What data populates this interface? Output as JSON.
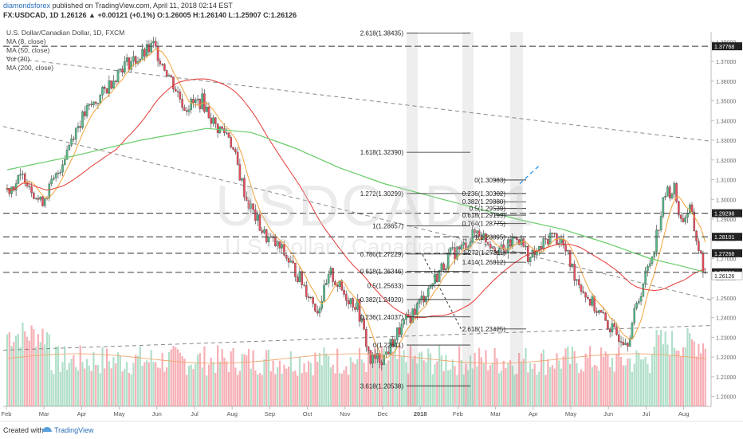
{
  "header": {
    "author": "diamondsforex",
    "published_text": "published on TradingView.com, April 11, 2018 02:14 EST",
    "symbol_line": "FX:USDCAD, 1D 1.26126 ▲ +0.00121 (+0.1%) O:1.26005 H:1.26140 L:1.25907 C:1.26126"
  },
  "legend": {
    "title": "U.S. Dollar/Canadian Dollar, 1D, FXCM",
    "items": [
      "MA (8, close)",
      "MA (50, close)",
      "Vol (20)",
      "MA (200, close)"
    ]
  },
  "watermark": {
    "symbol": "USDCAD, 1",
    "name": "U.S. Dollar / Canadian Dollar"
  },
  "footer": {
    "created_with": "Created with",
    "brand": "TradingView"
  },
  "colors": {
    "up": "#53b987",
    "down": "#eb4d5c",
    "ma8": "#f2a33a",
    "ma50": "#e53935",
    "ma200": "#66cc66",
    "level_line": "#555555",
    "accent": "#2196f3"
  },
  "chart_data": {
    "type": "candlestick",
    "title": "U.S. Dollar/Canadian Dollar, 1D, FXCM",
    "ylim": [
      1.195,
      1.385
    ],
    "y_ticks": [
      "1.38000",
      "1.37000",
      "1.36000",
      "1.35000",
      "1.34000",
      "1.33000",
      "1.32000",
      "1.31000",
      "1.30000",
      "1.29000",
      "1.28000",
      "1.27000",
      "1.26000",
      "1.25000",
      "1.24000",
      "1.23000",
      "1.22000",
      "1.21000",
      "1.20000"
    ],
    "x_ticks": [
      "Feb",
      "Mar",
      "Apr",
      "May",
      "Jun",
      "Jul",
      "Aug",
      "Sep",
      "Oct",
      "Nov",
      "Dec",
      "2018",
      "Feb",
      "Mar",
      "Apr",
      "May",
      "Jun",
      "Jul",
      "Aug"
    ],
    "price_anchors": [
      [
        0,
        1.305
      ],
      [
        8,
        1.312
      ],
      [
        15,
        1.298
      ],
      [
        22,
        1.311
      ],
      [
        30,
        1.334
      ],
      [
        36,
        1.345
      ],
      [
        42,
        1.352
      ],
      [
        52,
        1.368
      ],
      [
        60,
        1.372
      ],
      [
        66,
        1.378
      ],
      [
        73,
        1.363
      ],
      [
        80,
        1.347
      ],
      [
        88,
        1.35
      ],
      [
        94,
        1.337
      ],
      [
        100,
        1.333
      ],
      [
        108,
        1.3
      ],
      [
        116,
        1.282
      ],
      [
        124,
        1.274
      ],
      [
        132,
        1.26
      ],
      [
        140,
        1.244
      ],
      [
        146,
        1.262
      ],
      [
        152,
        1.252
      ],
      [
        158,
        1.246
      ],
      [
        164,
        1.218
      ],
      [
        170,
        1.22
      ],
      [
        176,
        1.232
      ],
      [
        184,
        1.244
      ],
      [
        192,
        1.258
      ],
      [
        200,
        1.272
      ],
      [
        206,
        1.276
      ],
      [
        212,
        1.284
      ],
      [
        218,
        1.278
      ],
      [
        224,
        1.273
      ],
      [
        230,
        1.282
      ],
      [
        236,
        1.27
      ],
      [
        240,
        1.274
      ],
      [
        245,
        1.282
      ],
      [
        250,
        1.279
      ],
      [
        256,
        1.262
      ],
      [
        262,
        1.25
      ],
      [
        268,
        1.241
      ],
      [
        274,
        1.232
      ],
      [
        280,
        1.229
      ],
      [
        286,
        1.254
      ],
      [
        291,
        1.272
      ],
      [
        297,
        1.303
      ],
      [
        301,
        1.305
      ],
      [
        304,
        1.289
      ],
      [
        308,
        1.295
      ],
      [
        312,
        1.275
      ],
      [
        315,
        1.2612
      ]
    ],
    "ma200_anchors": [
      [
        0,
        1.315
      ],
      [
        30,
        1.322
      ],
      [
        60,
        1.33
      ],
      [
        90,
        1.336
      ],
      [
        110,
        1.334
      ],
      [
        130,
        1.326
      ],
      [
        150,
        1.316
      ],
      [
        170,
        1.308
      ],
      [
        190,
        1.302
      ],
      [
        210,
        1.296
      ],
      [
        230,
        1.29
      ],
      [
        250,
        1.285
      ],
      [
        270,
        1.278
      ],
      [
        290,
        1.27
      ],
      [
        305,
        1.266
      ],
      [
        315,
        1.263
      ]
    ],
    "last_price": "1.26126",
    "levels": [
      {
        "price": 1.37768,
        "label": "1.37768"
      },
      {
        "price": 1.29298,
        "label": "1.29298"
      },
      {
        "price": 1.28101,
        "label": "1.28101"
      },
      {
        "price": 1.27268,
        "label": "1.27268"
      },
      {
        "price": 1.263,
        "label": "1.26300"
      }
    ],
    "fibonacci": [
      {
        "price": 1.38435,
        "label": "2.618(1.38435)"
      },
      {
        "price": 1.3239,
        "label": "1.618(1.32390)"
      },
      {
        "price": 1.30299,
        "label": "1.272(1.30299)"
      },
      {
        "price": 1.28657,
        "label": "1(1.28657)"
      },
      {
        "price": 1.27229,
        "label": "0.786(1.27229)"
      },
      {
        "price": 1.26346,
        "label": "0.618(1.26346)"
      },
      {
        "price": 1.25633,
        "label": "0.5(1.25633)"
      },
      {
        "price": 1.2492,
        "label": "0.382(1.24920)"
      },
      {
        "price": 1.24037,
        "label": "0.236(1.24037)"
      },
      {
        "price": 1.22611,
        "label": "0(1.22611)"
      },
      {
        "price": 1.20538,
        "label": "3.618(1.20538)"
      }
    ],
    "fibonacci_recent": [
      {
        "price": 1.30983,
        "label": "0(1.30983)"
      },
      {
        "price": 1.30302,
        "label": "0.236(1.30302)"
      },
      {
        "price": 1.2988,
        "label": "0.382(1.29880)"
      },
      {
        "price": 1.29539,
        "label": "0.5(1.29539)"
      },
      {
        "price": 1.29199,
        "label": "0.618(1.29199)"
      },
      {
        "price": 1.28775,
        "label": "0.764(1.28775)"
      },
      {
        "price": 1.28095,
        "label": "1(1.28095)"
      },
      {
        "price": 1.27311,
        "label": "1.272(1.27311)"
      },
      {
        "price": 1.26812,
        "label": "1.414(1.26812)"
      },
      {
        "price": 1.23425,
        "label": "2.618(1.23425)"
      }
    ]
  }
}
